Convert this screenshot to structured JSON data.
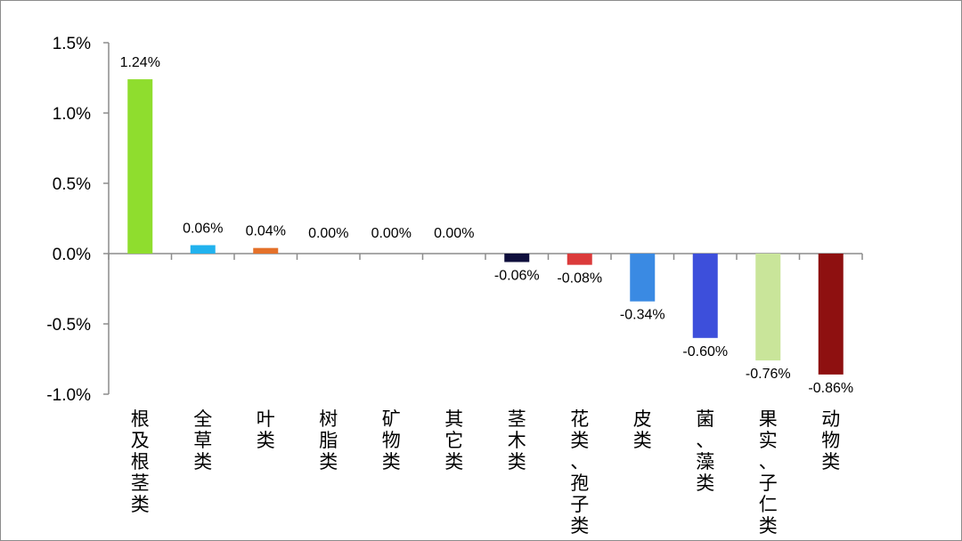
{
  "chart_data": {
    "type": "bar",
    "categories": [
      "根及根茎类",
      "全草类",
      "叶类",
      "树脂类",
      "矿物类",
      "其它类",
      "茎木类",
      "花类、孢子类",
      "皮类",
      "菌、藻类",
      "果实、子仁类",
      "动物类"
    ],
    "values": [
      1.24,
      0.06,
      0.04,
      0.0,
      0.0,
      0.0,
      -0.06,
      -0.08,
      -0.34,
      -0.6,
      -0.76,
      -0.86
    ],
    "data_labels": [
      "1.24%",
      "0.06%",
      "0.04%",
      "0.00%",
      "0.00%",
      "0.00%",
      "-0.06%",
      "-0.08%",
      "-0.34%",
      "-0.60%",
      "-0.76%",
      "-0.86%"
    ],
    "colors": [
      "#8fdd2e",
      "#21b2ee",
      "#e4712a",
      "#7f7f7f",
      "#7f7f7f",
      "#7f7f7f",
      "#0f0f3c",
      "#db3b3b",
      "#3a8ae3",
      "#3d4fdb",
      "#c9e59a",
      "#8e1010"
    ],
    "yticks": [
      1.5,
      1.0,
      0.5,
      0.0,
      -0.5,
      -1.0
    ],
    "ytick_labels": [
      "1.5%",
      "1.0%",
      "0.5%",
      "0.0%",
      "-0.5%",
      "-1.0%"
    ],
    "ylim": [
      -1.0,
      1.5
    ],
    "title": "",
    "xlabel": "",
    "ylabel": "",
    "grid": false,
    "legend": "none"
  }
}
